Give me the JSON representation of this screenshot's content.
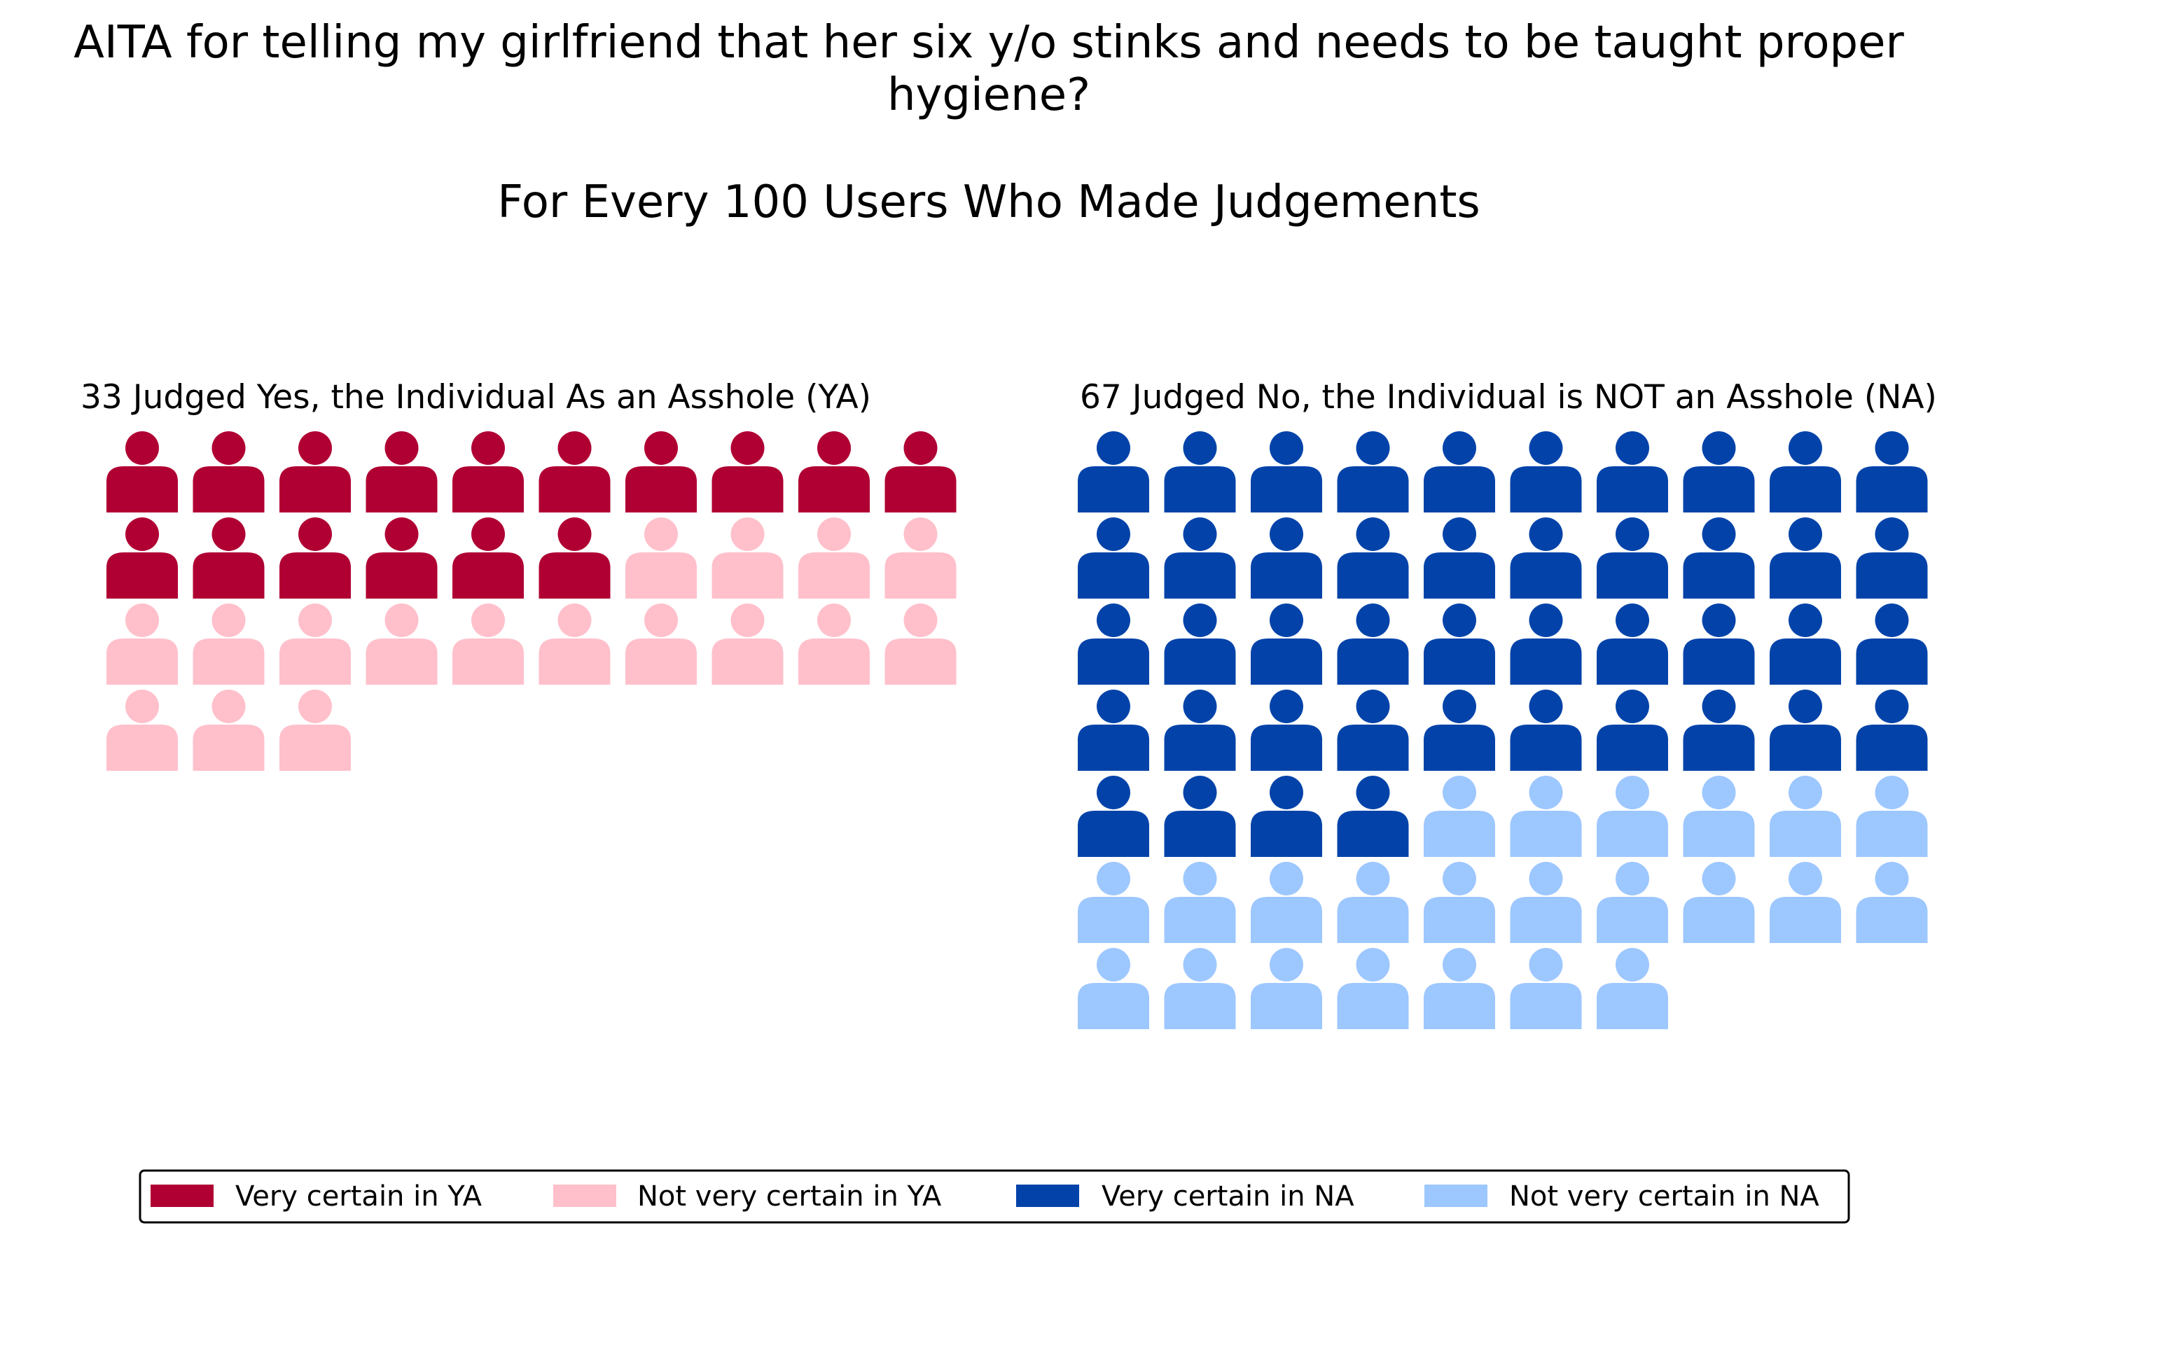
{
  "chart_data": {
    "type": "waffle",
    "title_lines": [
      "AITA for telling my girlfriend that her six y/o stinks and needs to be taught proper",
      "hygiene?"
    ],
    "subtitle": "For Every 100 Users Who Made Judgements",
    "columns_per_row": 10,
    "panels": [
      {
        "title": "33 Judged Yes, the Individual As an Asshole (YA)",
        "total": 33,
        "groups": [
          {
            "name": "Very certain in YA",
            "count": 16,
            "color": "#B00033"
          },
          {
            "name": "Not very certain in YA",
            "count": 17,
            "color": "#FFC0CB"
          }
        ]
      },
      {
        "title": "67 Judged No, the Individual is NOT an Asshole (NA)",
        "total": 67,
        "groups": [
          {
            "name": "Very certain in NA",
            "count": 44,
            "color": "#0343A9"
          },
          {
            "name": "Not very certain in NA",
            "count": 23,
            "color": "#9DC7FF"
          }
        ]
      }
    ],
    "legend": {
      "placement": "bottom-center",
      "entries": [
        {
          "label": "Very certain in YA",
          "color": "#B00033"
        },
        {
          "label": "Not very certain in YA",
          "color": "#FFC0CB"
        },
        {
          "label": "Very certain in NA",
          "color": "#0343A9"
        },
        {
          "label": "Not very certain in NA",
          "color": "#9DC7FF"
        }
      ]
    },
    "icon": "person-icon"
  }
}
